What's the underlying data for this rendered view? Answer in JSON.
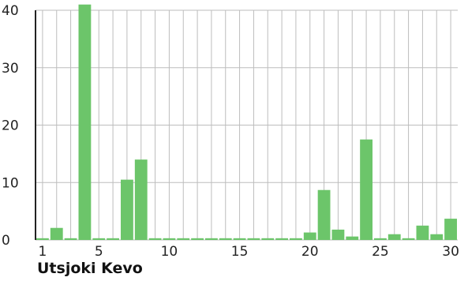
{
  "chart_data": {
    "type": "bar",
    "title": "Utsjoki Kevo",
    "xlabel": "",
    "ylabel": "",
    "categories": [
      1,
      2,
      3,
      4,
      5,
      6,
      7,
      8,
      9,
      10,
      11,
      12,
      13,
      14,
      15,
      16,
      17,
      18,
      19,
      20,
      21,
      22,
      23,
      24,
      25,
      26,
      27,
      28,
      29,
      30
    ],
    "values": [
      0.3,
      2.1,
      0.3,
      41,
      0.3,
      0.3,
      10.5,
      14,
      0.3,
      0.3,
      0.3,
      0.3,
      0.3,
      0.3,
      0.3,
      0.3,
      0.3,
      0.3,
      0.3,
      1.3,
      8.7,
      1.8,
      0.6,
      17.5,
      0.3,
      1.0,
      0.3,
      2.5,
      1.0,
      3.7
    ],
    "ylim": [
      0,
      40
    ],
    "yticks": [
      "0",
      "10",
      "20",
      "30",
      "40"
    ],
    "xticks": [
      "1",
      "5",
      "10",
      "15",
      "20",
      "25",
      "30"
    ],
    "grid": true,
    "colors": {
      "bar": "#6cc56a",
      "grid": "#bdbdbd",
      "axis": "#222222"
    }
  }
}
